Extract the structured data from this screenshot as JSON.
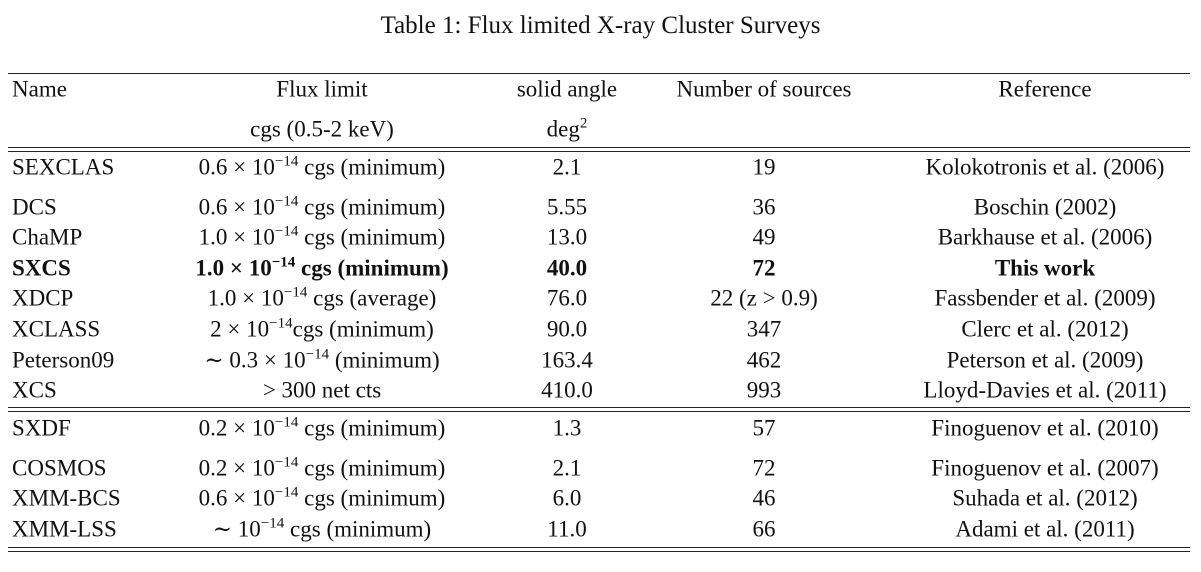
{
  "title": "Table 1: Flux limited X-ray Cluster Surveys",
  "header": {
    "row1": {
      "name": "Name",
      "flux": "Flux limit",
      "angle": "solid angle",
      "sources": "Number of sources",
      "reference": "Reference"
    },
    "row2": {
      "flux": "cgs (0.5-2 keV)",
      "angle": {
        "base": "deg",
        "exp": "2"
      }
    }
  },
  "table": {
    "groups": [
      {
        "rows": [
          {
            "name": "SEXCLAS",
            "flux": {
              "base": "0.6 × 10",
              "exp": "−14",
              "rest": " cgs (minimum)"
            },
            "angle": "2.1",
            "sources": "19",
            "reference": "Kolokotronis et al. (2006)"
          },
          {
            "name": "DCS",
            "flux": {
              "base": "0.6 × 10",
              "exp": "−14",
              "rest": " cgs (minimum)"
            },
            "angle": "5.55",
            "sources": "36",
            "reference": "Boschin (2002)"
          },
          {
            "name": "ChaMP",
            "flux": {
              "base": "1.0 × 10",
              "exp": "−14",
              "rest": " cgs (minimum)"
            },
            "angle": "13.0",
            "sources": "49",
            "reference": "Barkhause et al. (2006)"
          },
          {
            "name": "SXCS",
            "flux": {
              "base": "1.0 × 10",
              "exp": "−14",
              "rest": " cgs (minimum)"
            },
            "angle": "40.0",
            "sources": "72",
            "reference": "This work",
            "bold": true
          },
          {
            "name": "XDCP",
            "flux": {
              "base": "1.0 × 10",
              "exp": "−14",
              "rest": " cgs (average)"
            },
            "angle": "76.0",
            "sources": "22 (z > 0.9)",
            "reference": "Fassbender et al. (2009)"
          },
          {
            "name": "XCLASS",
            "flux": {
              "base": "2 × 10",
              "exp": "−14",
              "rest": "cgs (minimum)"
            },
            "angle": "90.0",
            "sources": "347",
            "reference": "Clerc et al. (2012)"
          },
          {
            "name": "Peterson09",
            "flux": {
              "base": "∼ 0.3 × 10",
              "exp": "−14",
              "rest": " (minimum)"
            },
            "angle": "163.4",
            "sources": "462",
            "reference": "Peterson et al. (2009)"
          },
          {
            "name": "XCS",
            "flux": "> 300 net cts",
            "angle": "410.0",
            "sources": "993",
            "reference": "Lloyd-Davies et al. (2011)"
          }
        ]
      },
      {
        "rows": [
          {
            "name": "SXDF",
            "flux": {
              "base": "0.2 × 10",
              "exp": "−14",
              "rest": " cgs (minimum)"
            },
            "angle": "1.3",
            "sources": "57",
            "reference": "Finoguenov et al. (2010)"
          },
          {
            "name": "COSMOS",
            "flux": {
              "base": "0.2 × 10",
              "exp": "−14",
              "rest": " cgs (minimum)"
            },
            "angle": "2.1",
            "sources": "72",
            "reference": "Finoguenov et al. (2007)"
          },
          {
            "name": "XMM-BCS",
            "flux": {
              "base": "0.6 × 10",
              "exp": "−14",
              "rest": " cgs (minimum)"
            },
            "angle": "6.0",
            "sources": "46",
            "reference": "Suhada et al. (2012)"
          },
          {
            "name": "XMM-LSS",
            "flux": {
              "base": "∼ 10",
              "exp": "−14",
              "rest": " cgs (minimum)"
            },
            "angle": "11.0",
            "sources": "66",
            "reference": "Adami et al. (2011)"
          }
        ]
      }
    ]
  }
}
